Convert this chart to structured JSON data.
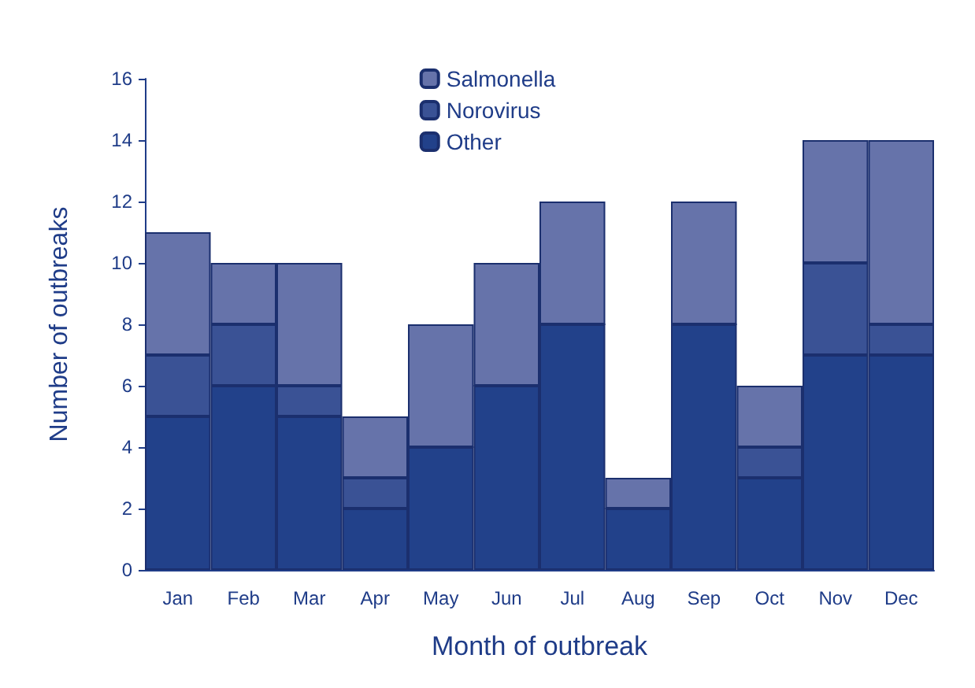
{
  "chart_data": {
    "type": "bar",
    "stacked": true,
    "xlabel": "Month of outbreak",
    "ylabel": "Number of outbreaks",
    "categories": [
      "Jan",
      "Feb",
      "Mar",
      "Apr",
      "May",
      "Jun",
      "Jul",
      "Aug",
      "Sep",
      "Oct",
      "Nov",
      "Dec"
    ],
    "series": [
      {
        "name": "Other",
        "color": "#22418a",
        "values": [
          5,
          6,
          5,
          2,
          4,
          6,
          8,
          2,
          8,
          3,
          7,
          7
        ]
      },
      {
        "name": "Norovirus",
        "color": "#3a5295",
        "values": [
          2,
          2,
          1,
          1,
          0,
          0,
          0,
          0,
          0,
          1,
          3,
          1
        ]
      },
      {
        "name": "Salmonella",
        "color": "#6673aa",
        "values": [
          4,
          2,
          4,
          2,
          4,
          4,
          4,
          1,
          4,
          2,
          4,
          6
        ]
      }
    ],
    "ylim": [
      0,
      16
    ],
    "yticks": [
      0,
      2,
      4,
      6,
      8,
      10,
      12,
      14,
      16
    ],
    "grid": false,
    "legend": "top"
  }
}
